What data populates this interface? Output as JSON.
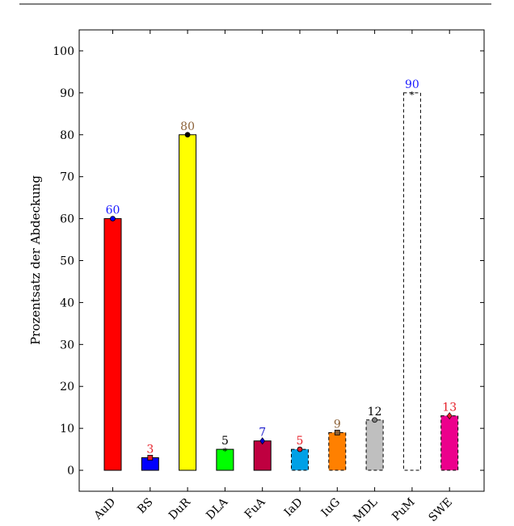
{
  "chart_data": {
    "type": "bar",
    "categories": [
      "AuD",
      "BS",
      "DuR",
      "DLA",
      "FuA",
      "IaD",
      "IuG",
      "MDL",
      "PuM",
      "SWE"
    ],
    "values": [
      60,
      3,
      80,
      5,
      7,
      5,
      9,
      12,
      90,
      13
    ],
    "ylabel": "Prozentsatz der Abdeckung",
    "ylim": [
      -5,
      105
    ],
    "yticks": [
      0,
      10,
      20,
      30,
      40,
      50,
      60,
      70,
      80,
      90,
      100
    ],
    "grid": false,
    "bar_fill_colors": [
      "#ff0000",
      "#0000ff",
      "#ffff00",
      "#00ff00",
      "#bf0040",
      "#00a0e6",
      "#ff8000",
      "#bfbfbf",
      "#ffffff",
      "#ec008c"
    ],
    "bar_dashed": [
      false,
      false,
      false,
      false,
      false,
      true,
      true,
      true,
      true,
      true
    ],
    "label_colors": [
      "#1a1aff",
      "#e6202a",
      "#8c6239",
      "#000000",
      "#1a1acc",
      "#e6202a",
      "#8c6239",
      "#000000",
      "#1a1aff",
      "#e6202a"
    ],
    "markers": [
      "circle",
      "square",
      "circle",
      "star",
      "diamond",
      "circle",
      "square",
      "circle",
      "star",
      "diamond"
    ],
    "marker_colors": [
      "#0000ff",
      "#e6202a",
      "#000000",
      "#000000",
      "#0000cc",
      "#e6202a",
      "#8c6239",
      "#808080",
      "#000000",
      "#e6202a"
    ]
  }
}
